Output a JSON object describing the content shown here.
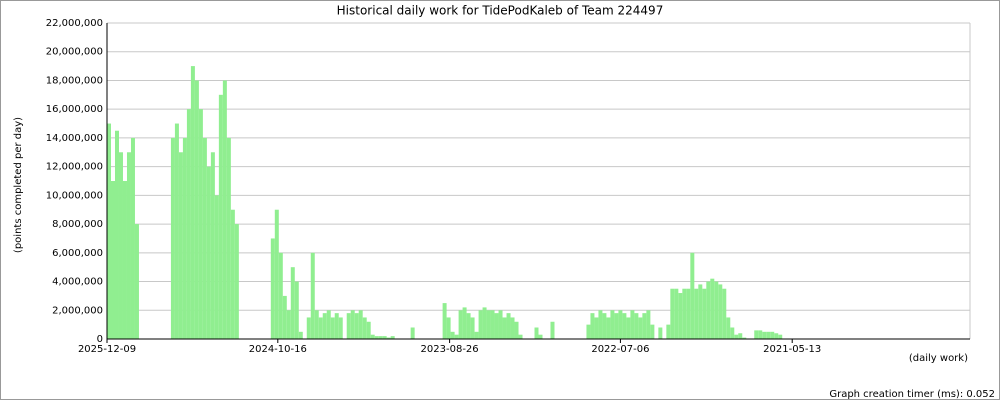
{
  "chart_data": {
    "type": "bar",
    "title": "Historical daily work for TidePodKaleb of Team 224497",
    "y_label": "(points completed per day)",
    "x_label": "(daily work)",
    "footer": "Graph creation timer (ms): 0.052",
    "color": "#90ee90",
    "grid": true,
    "ylim": [
      0,
      22000000
    ],
    "yticks": [
      0,
      {
        "value": 2000000,
        "label": "2,000,000"
      },
      {
        "value": 4000000,
        "label": "4,000,000"
      },
      {
        "value": 6000000,
        "label": "6,000,000"
      },
      {
        "value": 8000000,
        "label": "8,000,000"
      },
      {
        "value": 10000000,
        "label": "10,000,000"
      },
      {
        "value": 12000000,
        "label": "12,000,000"
      },
      {
        "value": 14000000,
        "label": "14,000,000"
      },
      {
        "value": 16000000,
        "label": "16,000,000"
      },
      {
        "value": 18000000,
        "label": "18,000,000"
      },
      {
        "value": 20000000,
        "label": "20,000,000"
      },
      {
        "value": 22000000,
        "label": "22,000,000"
      }
    ],
    "xlim": [
      0,
      216
    ],
    "xticks": [
      {
        "value": 0,
        "label": "2025-12-09"
      },
      {
        "value": 42.75,
        "label": "2024-10-16"
      },
      {
        "value": 85.75,
        "label": "2023-08-26"
      },
      {
        "value": 128.5,
        "label": "2022-07-06"
      },
      {
        "value": 171.5,
        "label": "2021-05-13"
      }
    ],
    "values": [
      15000000,
      11000000,
      14500000,
      13000000,
      11000000,
      13000000,
      14000000,
      8000000,
      0,
      0,
      0,
      0,
      0,
      0,
      0,
      0,
      14000000,
      15000000,
      13000000,
      14000000,
      16000000,
      19000000,
      18000000,
      16000000,
      14000000,
      12000000,
      13000000,
      10000000,
      17000000,
      18000000,
      14000000,
      9000000,
      8000000,
      0,
      0,
      0,
      0,
      0,
      0,
      0,
      0,
      7000000,
      9000000,
      6000000,
      3000000,
      2000000,
      5000000,
      4000000,
      500000,
      0,
      1500000,
      6000000,
      2000000,
      1500000,
      1800000,
      2000000,
      1500000,
      1800000,
      1500000,
      0,
      1800000,
      2000000,
      1800000,
      2000000,
      1500000,
      1200000,
      300000,
      200000,
      200000,
      200000,
      100000,
      200000,
      0,
      0,
      0,
      0,
      800000,
      0,
      0,
      0,
      0,
      0,
      0,
      0,
      2500000,
      1500000,
      500000,
      300000,
      2000000,
      2200000,
      1800000,
      1500000,
      500000,
      2000000,
      2200000,
      2000000,
      2000000,
      1800000,
      2000000,
      1500000,
      1800000,
      1500000,
      1200000,
      300000,
      0,
      0,
      0,
      800000,
      300000,
      0,
      0,
      1200000,
      0,
      0,
      0,
      0,
      0,
      0,
      0,
      0,
      1000000,
      1800000,
      1500000,
      2000000,
      1800000,
      1500000,
      2000000,
      1800000,
      2000000,
      1800000,
      1500000,
      2000000,
      1800000,
      1500000,
      1800000,
      2000000,
      1000000,
      0,
      800000,
      0,
      1000000,
      3500000,
      3500000,
      3200000,
      3500000,
      3500000,
      6000000,
      3500000,
      3800000,
      3500000,
      4000000,
      4200000,
      4000000,
      3800000,
      3500000,
      1500000,
      800000,
      300000,
      400000,
      100000,
      0,
      0,
      600000,
      600000,
      500000,
      500000,
      500000,
      400000,
      300000,
      0,
      0,
      0,
      0,
      0,
      0,
      0,
      0,
      0,
      0,
      0,
      0,
      0,
      0,
      0,
      0,
      0,
      0,
      0,
      0,
      0,
      0,
      0,
      0,
      0,
      0,
      0,
      0,
      0,
      0,
      0,
      0,
      0,
      0,
      0,
      0,
      0,
      0,
      0,
      0,
      0,
      0,
      0,
      0,
      0,
      0,
      0
    ]
  }
}
